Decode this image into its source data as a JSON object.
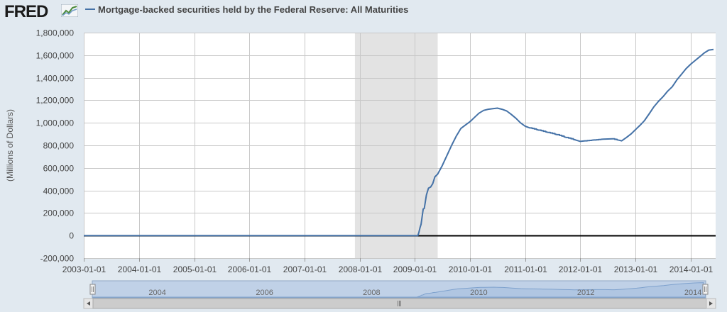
{
  "header": {
    "logo": "FRED",
    "logo_graph_icon": "trend-line-icon"
  },
  "colors": {
    "series": "#4572a7",
    "recession": "#e3e3e3",
    "background": "#e1e9f0",
    "plot": "#ffffff",
    "navigator_fill": "#a9c1de",
    "navigator_window": "#b8cde6"
  },
  "chart_data": {
    "type": "line",
    "title": "",
    "legend": [
      "Mortgage-backed securities held by the Federal Reserve: All Maturities"
    ],
    "ylabel": "(Millions of Dollars)",
    "xlabel": "",
    "ylim": [
      -200000,
      1800000
    ],
    "xlim": [
      "2003-01-01",
      "2014-06-15"
    ],
    "yticks": [
      -200000,
      0,
      200000,
      400000,
      600000,
      800000,
      1000000,
      1200000,
      1400000,
      1600000,
      1800000
    ],
    "ytick_labels": [
      "-200,000",
      "0",
      "200,000",
      "400,000",
      "600,000",
      "800,000",
      "1,000,000",
      "1,200,000",
      "1,400,000",
      "1,600,000",
      "1,800,000"
    ],
    "xticks": [
      "2003-01-01",
      "2004-01-01",
      "2005-01-01",
      "2006-01-01",
      "2007-01-01",
      "2008-01-01",
      "2009-01-01",
      "2010-01-01",
      "2011-01-01",
      "2012-01-01",
      "2013-01-01",
      "2014-01-01"
    ],
    "grid": true,
    "recession_shading": [
      {
        "start": "2007-12-01",
        "end": "2009-06-01"
      }
    ],
    "navigator_labels": [
      "2004",
      "2006",
      "2008",
      "2010",
      "2012",
      "2014"
    ],
    "series": [
      {
        "name": "Mortgage-backed securities held by the Federal Reserve: All Maturities",
        "x": [
          "2003-01-01",
          "2008-12-31",
          "2009-01-07",
          "2009-01-21",
          "2009-01-28",
          "2009-02-04",
          "2009-02-11",
          "2009-02-25",
          "2009-03-04",
          "2009-03-18",
          "2009-04-01",
          "2009-04-15",
          "2009-04-29",
          "2009-05-13",
          "2009-06-01",
          "2009-07-01",
          "2009-08-01",
          "2009-09-01",
          "2009-10-01",
          "2009-11-01",
          "2009-12-01",
          "2010-01-01",
          "2010-02-01",
          "2010-03-01",
          "2010-04-01",
          "2010-05-01",
          "2010-06-01",
          "2010-07-01",
          "2010-08-01",
          "2010-09-01",
          "2010-10-01",
          "2010-11-01",
          "2010-12-01",
          "2011-01-01",
          "2011-02-01",
          "2011-04-01",
          "2011-06-01",
          "2011-08-01",
          "2011-10-01",
          "2011-12-01",
          "2012-01-01",
          "2012-02-01",
          "2012-04-01",
          "2012-06-01",
          "2012-08-01",
          "2012-09-15",
          "2012-10-01",
          "2012-11-01",
          "2012-12-01",
          "2013-01-01",
          "2013-02-01",
          "2013-03-01",
          "2013-04-01",
          "2013-05-01",
          "2013-06-01",
          "2013-07-01",
          "2013-08-01",
          "2013-09-01",
          "2013-10-01",
          "2013-11-01",
          "2013-12-01",
          "2014-01-01",
          "2014-02-01",
          "2014-03-01",
          "2014-04-01",
          "2014-05-01",
          "2014-06-01"
        ],
        "values": [
          0,
          0,
          0,
          0,
          30000,
          70000,
          100000,
          236000,
          240000,
          360000,
          420000,
          430000,
          460000,
          520000,
          545000,
          620000,
          710000,
          800000,
          880000,
          950000,
          980000,
          1010000,
          1050000,
          1085000,
          1110000,
          1120000,
          1125000,
          1130000,
          1120000,
          1105000,
          1075000,
          1040000,
          1000000,
          970000,
          955000,
          935000,
          915000,
          895000,
          870000,
          848000,
          835000,
          840000,
          848000,
          855000,
          858000,
          845000,
          840000,
          870000,
          900000,
          940000,
          980000,
          1020000,
          1080000,
          1140000,
          1190000,
          1230000,
          1280000,
          1320000,
          1380000,
          1430000,
          1480000,
          1520000,
          1555000,
          1585000,
          1620000,
          1645000,
          1650000
        ]
      }
    ]
  }
}
